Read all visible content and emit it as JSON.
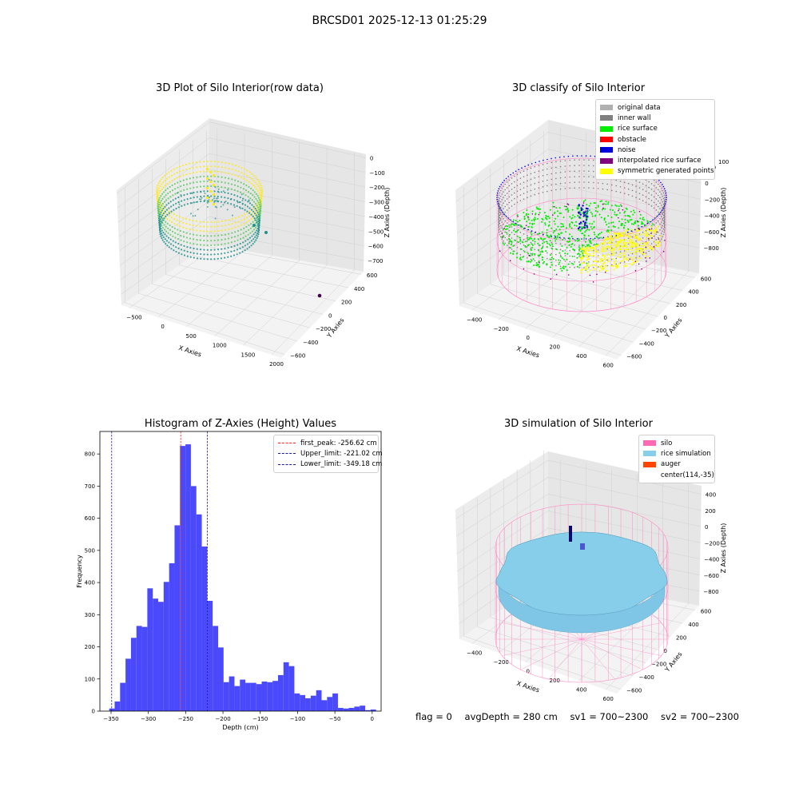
{
  "figure": {
    "suptitle": "BRCSD01 2025-12-13 01:25:29"
  },
  "footer": {
    "flag": "flag = 0",
    "avg_depth": "avgDepth = 280 cm",
    "sv1": "sv1 = 700~2300",
    "sv2": "sv2 = 700~2300"
  },
  "chart_data": [
    {
      "type": "scatter",
      "subtype": "3d",
      "title": "3D Plot of Silo Interior(row data)",
      "xlabel": "X Axies",
      "ylabel": "Y Axies",
      "zlabel": "Z Axies (Depth)",
      "x_ticks": [
        "−500",
        "0",
        "500",
        "1000",
        "1500",
        "2000"
      ],
      "y_ticks": [
        "−600",
        "−400",
        "−200",
        "0",
        "200",
        "400",
        "600"
      ],
      "z_ticks": [
        "0",
        "−100",
        "−200",
        "−300",
        "−400",
        "−500",
        "−600",
        "−700"
      ],
      "colormap": [
        "#440154",
        "#3b528b",
        "#21918c",
        "#5ec962",
        "#fde725"
      ]
    },
    {
      "type": "scatter",
      "subtype": "3d",
      "title": "3D classify of Silo Interior",
      "xlabel": "X Axies",
      "ylabel": "Y Axies",
      "zlabel": "Z Axies (Depth)",
      "x_ticks": [
        "−400",
        "−200",
        "0",
        "200",
        "400",
        "600"
      ],
      "y_ticks": [
        "−600",
        "−400",
        "−200",
        "0",
        "200",
        "400",
        "600"
      ],
      "z_ticks": [
        "200",
        "0",
        "−200",
        "−400",
        "−600",
        "−800"
      ],
      "z_top_tick": "100",
      "legend": [
        {
          "label": "original data",
          "color": "#b0b0b0"
        },
        {
          "label": "inner wall",
          "color": "#808080"
        },
        {
          "label": "rice surface",
          "color": "#00ee00"
        },
        {
          "label": "obstacle",
          "color": "#ff0000"
        },
        {
          "label": "noise",
          "color": "#0000dd"
        },
        {
          "label": "interpolated rice surface",
          "color": "#800080"
        },
        {
          "label": "symmetric generated points",
          "color": "#ffff00"
        }
      ]
    },
    {
      "type": "bar",
      "subtype": "histogram",
      "title": "Histogram of Z-Axies (Height) Values",
      "xlabel": "Depth (cm)",
      "ylabel": "Frequency",
      "xlim": [
        -365,
        12
      ],
      "ylim": [
        0,
        870
      ],
      "x_ticks": [
        -350,
        -300,
        -250,
        -200,
        -150,
        -100,
        -50,
        0
      ],
      "x_tick_labels": [
        "−350",
        "−300",
        "−250",
        "−200",
        "−150",
        "−100",
        "−50",
        "0"
      ],
      "y_ticks": [
        0,
        100,
        200,
        300,
        400,
        500,
        600,
        700,
        800
      ],
      "bin_start": -352.5,
      "bin_width": 7.3,
      "values": [
        8,
        30,
        88,
        163,
        228,
        265,
        262,
        382,
        350,
        340,
        402,
        460,
        578,
        825,
        830,
        700,
        612,
        512,
        343,
        265,
        198,
        90,
        108,
        78,
        98,
        88,
        88,
        84,
        92,
        90,
        94,
        112,
        152,
        140,
        55,
        50,
        40,
        48,
        65,
        34,
        44,
        55,
        10,
        8,
        10,
        14,
        17,
        3,
        5
      ],
      "color": "#4a4afc",
      "vlines": [
        {
          "x": -256.62,
          "label": "first_peak: -256.62 cm",
          "color": "#ff2020"
        },
        {
          "x": -221.02,
          "label": "Upper_limit: -221.02 cm",
          "color": "#1a1aa8"
        },
        {
          "x": -349.18,
          "label": "Lower_limit: -349.18 cm",
          "color": "#1a1aa8"
        }
      ]
    },
    {
      "type": "area",
      "subtype": "3d-surface",
      "title": "3D simulation of Silo Interior",
      "xlabel": "X Axies",
      "ylabel": "Y Axies",
      "zlabel": "Z Axies (Depth)",
      "x_ticks": [
        "−400",
        "−200",
        "0",
        "200",
        "400",
        "600"
      ],
      "y_ticks": [
        "−600",
        "−400",
        "−200",
        "0",
        "200",
        "400",
        "600"
      ],
      "z_ticks": [
        "400",
        "200",
        "0",
        "−200",
        "−400",
        "−600",
        "−800"
      ],
      "legend": [
        {
          "label": "silo",
          "color": "#ff69b4"
        },
        {
          "label": "rice simulation",
          "color": "#87ceeb"
        },
        {
          "label": "auger",
          "color": "#ff4500"
        },
        {
          "label": "center(114,-35)",
          "color": ""
        }
      ]
    }
  ]
}
